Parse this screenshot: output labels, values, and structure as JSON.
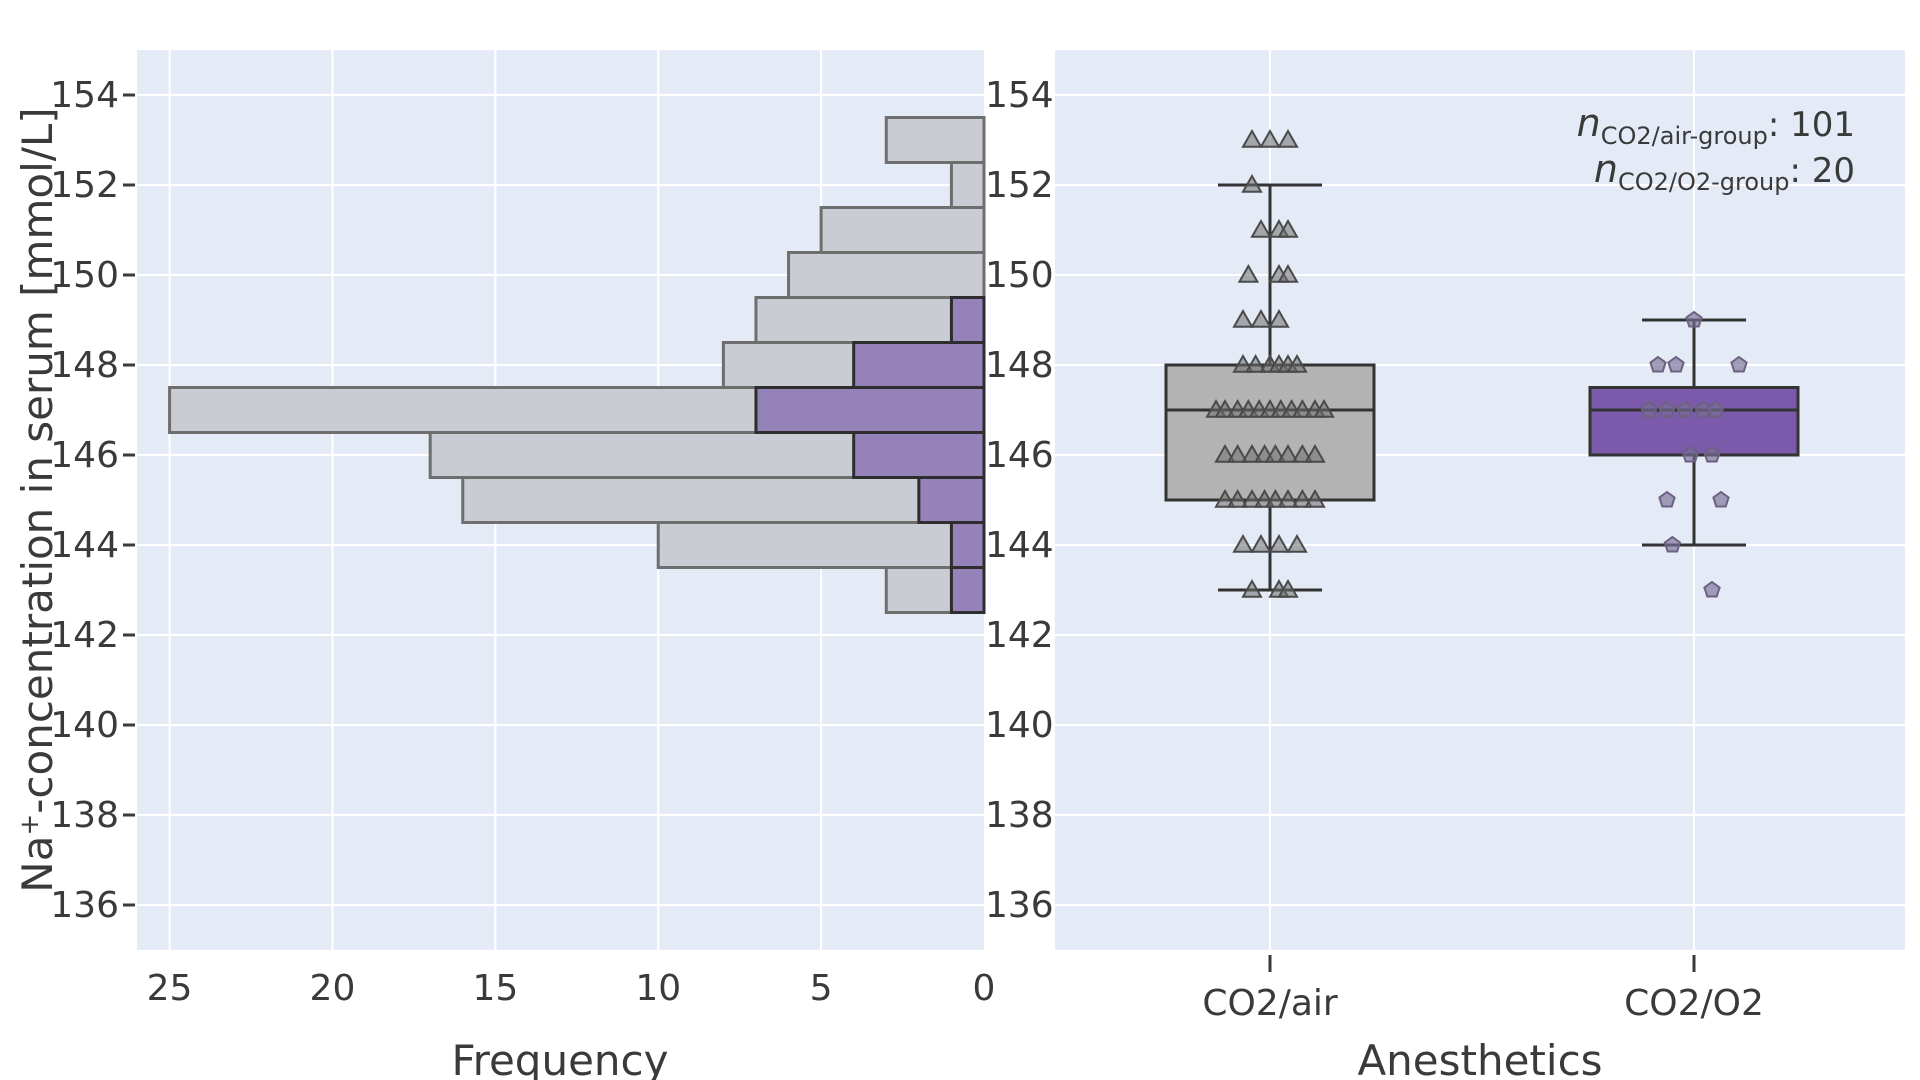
{
  "chart_data": [
    {
      "type": "bar",
      "orientation": "horizontal",
      "description_axis": "histogram",
      "xlabel": "Frequency",
      "ylabel_parts": {
        "pre": "Na",
        "sup": "+",
        "post": "-concentration in serum [mmol/L]"
      },
      "xlim": [
        26,
        0
      ],
      "ylim": [
        135,
        155
      ],
      "x_ticks": [
        25,
        20,
        15,
        10,
        5,
        0
      ],
      "y_ticks": [
        136,
        138,
        140,
        142,
        144,
        146,
        148,
        150,
        152,
        154
      ],
      "grid": true,
      "bin_width": 1,
      "series": [
        {
          "name": "CO2/air",
          "color": "#c9ccd2",
          "bins": [
            {
              "center": 143,
              "count": 3
            },
            {
              "center": 144,
              "count": 10
            },
            {
              "center": 145,
              "count": 16
            },
            {
              "center": 146,
              "count": 17
            },
            {
              "center": 147,
              "count": 25
            },
            {
              "center": 148,
              "count": 8
            },
            {
              "center": 149,
              "count": 7
            },
            {
              "center": 150,
              "count": 6
            },
            {
              "center": 151,
              "count": 5
            },
            {
              "center": 152,
              "count": 1
            },
            {
              "center": 153,
              "count": 3
            }
          ]
        },
        {
          "name": "CO2/O2",
          "color": "#9582b8",
          "bins": [
            {
              "center": 143,
              "count": 1
            },
            {
              "center": 144,
              "count": 1
            },
            {
              "center": 145,
              "count": 2
            },
            {
              "center": 146,
              "count": 4
            },
            {
              "center": 147,
              "count": 7
            },
            {
              "center": 148,
              "count": 4
            },
            {
              "center": 149,
              "count": 1
            }
          ]
        }
      ]
    },
    {
      "type": "box",
      "xlabel": "Anesthetics",
      "categories": [
        "CO2/air",
        "CO2/O2"
      ],
      "ylim": [
        135,
        155
      ],
      "y_ticks": [
        136,
        138,
        140,
        142,
        144,
        146,
        148,
        150,
        152,
        154
      ],
      "grid": true,
      "series": [
        {
          "name": "CO2/air",
          "color": "#b3b3b3",
          "box": {
            "min": 143,
            "q1": 145,
            "median": 147,
            "q3": 148,
            "max": 152
          },
          "marker": "triangle",
          "points": [
            [
              -0.1,
              153
            ],
            [
              0,
              153
            ],
            [
              0.1,
              153
            ],
            [
              -0.1,
              152
            ],
            [
              -0.05,
              151
            ],
            [
              0.05,
              151
            ],
            [
              0.1,
              151
            ],
            [
              -0.12,
              150
            ],
            [
              0.05,
              150
            ],
            [
              0.1,
              150
            ],
            [
              -0.15,
              149
            ],
            [
              -0.05,
              149
            ],
            [
              0.05,
              149
            ],
            [
              -0.15,
              148
            ],
            [
              -0.08,
              148
            ],
            [
              0,
              148
            ],
            [
              0.05,
              148
            ],
            [
              0.1,
              148
            ],
            [
              0.15,
              148
            ],
            [
              -0.3,
              147
            ],
            [
              -0.25,
              147
            ],
            [
              -0.18,
              147
            ],
            [
              -0.12,
              147
            ],
            [
              -0.06,
              147
            ],
            [
              0,
              147
            ],
            [
              0.06,
              147
            ],
            [
              0.12,
              147
            ],
            [
              0.18,
              147
            ],
            [
              0.25,
              147
            ],
            [
              0.3,
              147
            ],
            [
              -0.25,
              146
            ],
            [
              -0.18,
              146
            ],
            [
              -0.1,
              146
            ],
            [
              -0.03,
              146
            ],
            [
              0.03,
              146
            ],
            [
              0.1,
              146
            ],
            [
              0.18,
              146
            ],
            [
              0.25,
              146
            ],
            [
              -0.25,
              145
            ],
            [
              -0.18,
              145
            ],
            [
              -0.1,
              145
            ],
            [
              -0.03,
              145
            ],
            [
              0.03,
              145
            ],
            [
              0.1,
              145
            ],
            [
              0.18,
              145
            ],
            [
              0.25,
              145
            ],
            [
              -0.15,
              144
            ],
            [
              -0.05,
              144
            ],
            [
              0.05,
              144
            ],
            [
              0.15,
              144
            ],
            [
              -0.1,
              143
            ],
            [
              0.05,
              143
            ],
            [
              0.1,
              143
            ]
          ]
        },
        {
          "name": "CO2/O2",
          "color": "#7c5aab",
          "box": {
            "min": 144,
            "q1": 146,
            "median": 147,
            "q3": 147.5,
            "max": 149
          },
          "marker": "pentagon",
          "points": [
            [
              0,
              149
            ],
            [
              -0.2,
              148
            ],
            [
              -0.1,
              148
            ],
            [
              0.25,
              148
            ],
            [
              -0.25,
              147
            ],
            [
              -0.15,
              147
            ],
            [
              -0.05,
              147
            ],
            [
              0.05,
              147
            ],
            [
              0.12,
              147
            ],
            [
              -0.02,
              146
            ],
            [
              0.1,
              146
            ],
            [
              -0.15,
              145
            ],
            [
              0.15,
              145
            ],
            [
              -0.12,
              144
            ],
            [
              0.1,
              143
            ]
          ]
        }
      ],
      "annotations": [
        {
          "n_symbol": "n",
          "subscript": "CO2/air-group",
          "value": ": 101"
        },
        {
          "n_symbol": "n",
          "subscript": "CO2/O2-group",
          "value": ": 20"
        }
      ]
    }
  ]
}
